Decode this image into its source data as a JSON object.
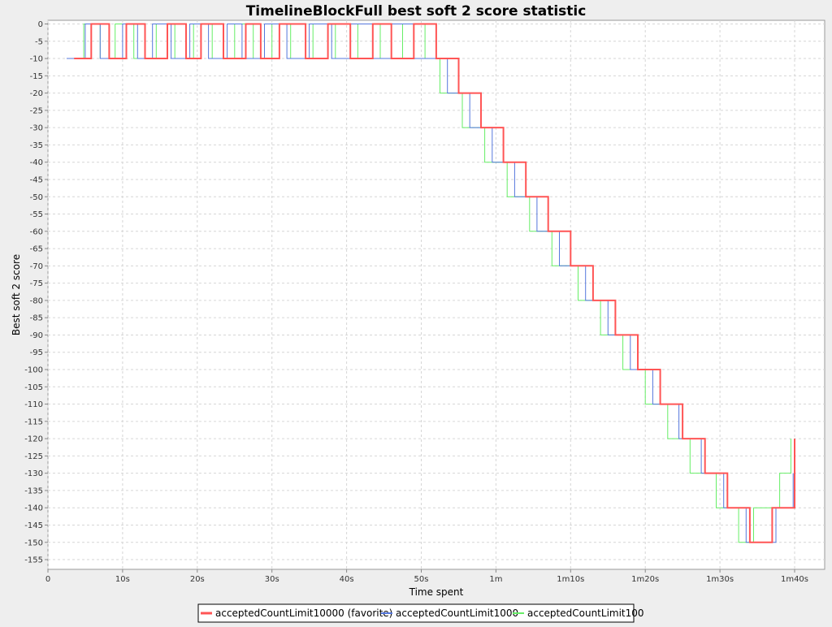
{
  "chart_data": {
    "type": "line",
    "step": true,
    "title": "TimelineBlockFull best soft 2 score statistic",
    "xlabel": "Time spent",
    "ylabel": "Best soft 2 score",
    "xlim": [
      0,
      104
    ],
    "ylim": [
      -158,
      0
    ],
    "x_ticks": [
      {
        "value": 0,
        "label": "0"
      },
      {
        "value": 10,
        "label": "10s"
      },
      {
        "value": 20,
        "label": "20s"
      },
      {
        "value": 30,
        "label": "30s"
      },
      {
        "value": 40,
        "label": "40s"
      },
      {
        "value": 50,
        "label": "50s"
      },
      {
        "value": 60,
        "label": "1m"
      },
      {
        "value": 70,
        "label": "1m10s"
      },
      {
        "value": 80,
        "label": "1m20s"
      },
      {
        "value": 90,
        "label": "1m30s"
      },
      {
        "value": 100,
        "label": "1m40s"
      }
    ],
    "y_ticks": [
      0,
      -5,
      -10,
      -15,
      -20,
      -25,
      -30,
      -35,
      -40,
      -45,
      -50,
      -55,
      -60,
      -65,
      -70,
      -75,
      -80,
      -85,
      -90,
      -95,
      -100,
      -105,
      -110,
      -115,
      -120,
      -125,
      -130,
      -135,
      -140,
      -145,
      -150,
      -155
    ],
    "grid": true,
    "legend_position": "bottom",
    "series": [
      {
        "name": "acceptedCountLimit10000 (favorite)",
        "color": "#ff5555",
        "width": 2,
        "x": [
          3.5,
          5.8,
          5.8,
          8.2,
          8.2,
          10.5,
          10.5,
          13.0,
          13.0,
          16.0,
          16.0,
          18.5,
          18.5,
          20.5,
          20.5,
          23.5,
          23.5,
          26.5,
          26.5,
          28.5,
          28.5,
          31.0,
          31.0,
          34.5,
          34.5,
          37.5,
          37.5,
          40.5,
          40.5,
          43.5,
          43.5,
          46.0,
          46.0,
          49.0,
          49.0,
          52.0,
          52.0,
          55.0,
          55.0,
          58.0,
          58.0,
          61.0,
          61.0,
          64.0,
          64.0,
          67.0,
          67.0,
          70.0,
          70.0,
          73.0,
          73.0,
          76.0,
          76.0,
          79.0,
          79.0,
          82.0,
          82.0,
          85.0,
          85.0,
          88.0,
          88.0,
          91.0,
          91.0,
          94.0,
          94.0,
          97.0,
          97.0,
          100.0,
          100.0
        ],
        "y": [
          -10,
          -10,
          0,
          0,
          -10,
          -10,
          0,
          0,
          -10,
          -10,
          0,
          0,
          -10,
          -10,
          0,
          0,
          -10,
          -10,
          0,
          0,
          -10,
          -10,
          0,
          0,
          -10,
          -10,
          0,
          0,
          -10,
          -10,
          0,
          0,
          -10,
          -10,
          0,
          0,
          -10,
          -10,
          -20,
          -20,
          -30,
          -30,
          -40,
          -40,
          -50,
          -50,
          -60,
          -60,
          -70,
          -70,
          -80,
          -80,
          -90,
          -90,
          -100,
          -100,
          -110,
          -110,
          -120,
          -120,
          -130,
          -130,
          -140,
          -140,
          -150,
          -150,
          -140,
          -140,
          -120
        ]
      },
      {
        "name": "acceptedCountLimit1000",
        "color": "#5577dd",
        "width": 1,
        "x": [
          2.5,
          5.0,
          5.0,
          7.0,
          7.0,
          10.0,
          10.0,
          12.0,
          12.0,
          14.0,
          14.0,
          16.5,
          16.5,
          19.0,
          19.0,
          21.5,
          21.5,
          24.0,
          24.0,
          26.0,
          26.0,
          29.0,
          29.0,
          32.0,
          32.0,
          35.0,
          35.0,
          38.0,
          38.0,
          40.5,
          40.5,
          43.5,
          43.5,
          46.0,
          46.0,
          49.0,
          49.0,
          51.0,
          51.0,
          53.5,
          53.5,
          56.5,
          56.5,
          59.5,
          59.5,
          62.5,
          62.5,
          65.5,
          65.5,
          68.5,
          68.5,
          72.0,
          72.0,
          75.0,
          75.0,
          78.0,
          78.0,
          81.0,
          81.0,
          84.5,
          84.5,
          87.5,
          87.5,
          90.5,
          90.5,
          93.5,
          93.5,
          97.5,
          97.5,
          99.8,
          99.8
        ],
        "y": [
          -10,
          -10,
          0,
          0,
          -10,
          -10,
          0,
          0,
          -10,
          -10,
          0,
          0,
          -10,
          -10,
          0,
          0,
          -10,
          -10,
          0,
          0,
          -10,
          -10,
          0,
          0,
          -10,
          -10,
          0,
          0,
          -10,
          -10,
          0,
          0,
          -10,
          -10,
          0,
          0,
          -10,
          -10,
          -10,
          -10,
          -20,
          -20,
          -30,
          -30,
          -40,
          -40,
          -50,
          -50,
          -60,
          -60,
          -70,
          -70,
          -80,
          -80,
          -90,
          -90,
          -100,
          -100,
          -110,
          -110,
          -120,
          -120,
          -130,
          -130,
          -140,
          -140,
          -150,
          -150,
          -140,
          -140,
          -130
        ]
      },
      {
        "name": "acceptedCountLimit100",
        "color": "#66ee66",
        "width": 1,
        "x": [
          4.0,
          4.8,
          4.8,
          7.0,
          7.0,
          9.0,
          9.0,
          11.5,
          11.5,
          14.5,
          14.5,
          17.0,
          17.0,
          19.5,
          19.5,
          22.0,
          22.0,
          25.0,
          25.0,
          27.5,
          27.5,
          30.0,
          30.0,
          32.5,
          32.5,
          35.5,
          35.5,
          38.5,
          38.5,
          41.5,
          41.5,
          44.5,
          44.5,
          47.5,
          47.5,
          50.5,
          50.5,
          52.5,
          52.5,
          55.5,
          55.5,
          58.5,
          58.5,
          61.5,
          61.5,
          64.5,
          64.5,
          67.5,
          67.5,
          71.0,
          71.0,
          74.0,
          74.0,
          77.0,
          77.0,
          80.0,
          80.0,
          83.0,
          83.0,
          86.0,
          86.0,
          89.5,
          89.5,
          92.5,
          92.5,
          94.5,
          94.5,
          98.0,
          98.0,
          99.5,
          99.5
        ],
        "y": [
          -10,
          -10,
          0,
          0,
          -10,
          -10,
          0,
          0,
          -10,
          -10,
          0,
          0,
          -10,
          -10,
          0,
          0,
          -10,
          -10,
          0,
          0,
          -10,
          -10,
          0,
          0,
          -10,
          -10,
          0,
          0,
          -10,
          -10,
          0,
          0,
          -10,
          -10,
          0,
          0,
          -10,
          -10,
          -20,
          -20,
          -30,
          -30,
          -40,
          -40,
          -50,
          -50,
          -60,
          -60,
          -70,
          -70,
          -80,
          -80,
          -90,
          -90,
          -100,
          -100,
          -110,
          -110,
          -120,
          -120,
          -130,
          -130,
          -140,
          -140,
          -150,
          -150,
          -140,
          -140,
          -130,
          -130,
          -120
        ]
      }
    ]
  }
}
